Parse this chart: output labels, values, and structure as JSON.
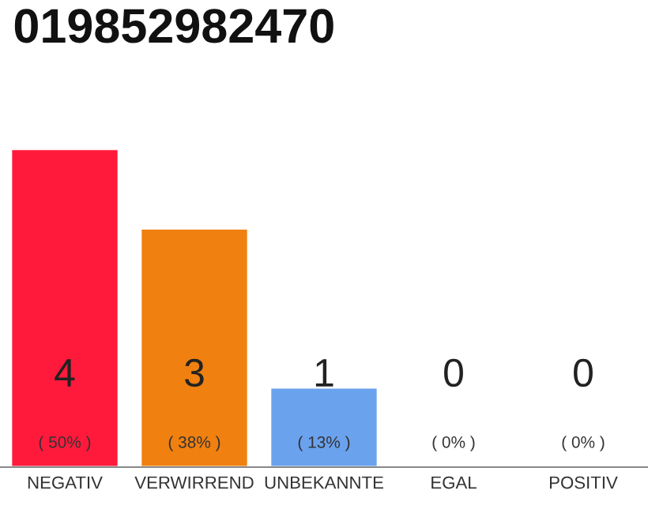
{
  "chart_data": {
    "type": "bar",
    "title": "019852982470",
    "categories": [
      "NEGATIV",
      "VERWIRREND",
      "UNBEKANNTE",
      "EGAL",
      "POSITIV"
    ],
    "values": [
      4,
      3,
      1,
      0,
      0
    ],
    "colors": [
      "#ff1a3c",
      "#f0800f",
      "#6aa2ee",
      null,
      null
    ],
    "ylim": [
      0,
      4
    ],
    "tick_labels": "x",
    "data_labels": true,
    "grid": false,
    "legend": false,
    "annotations": [
      "( 50% )",
      "( 38% )",
      "( 13% )",
      "( 0% )",
      "( 0% )"
    ]
  }
}
